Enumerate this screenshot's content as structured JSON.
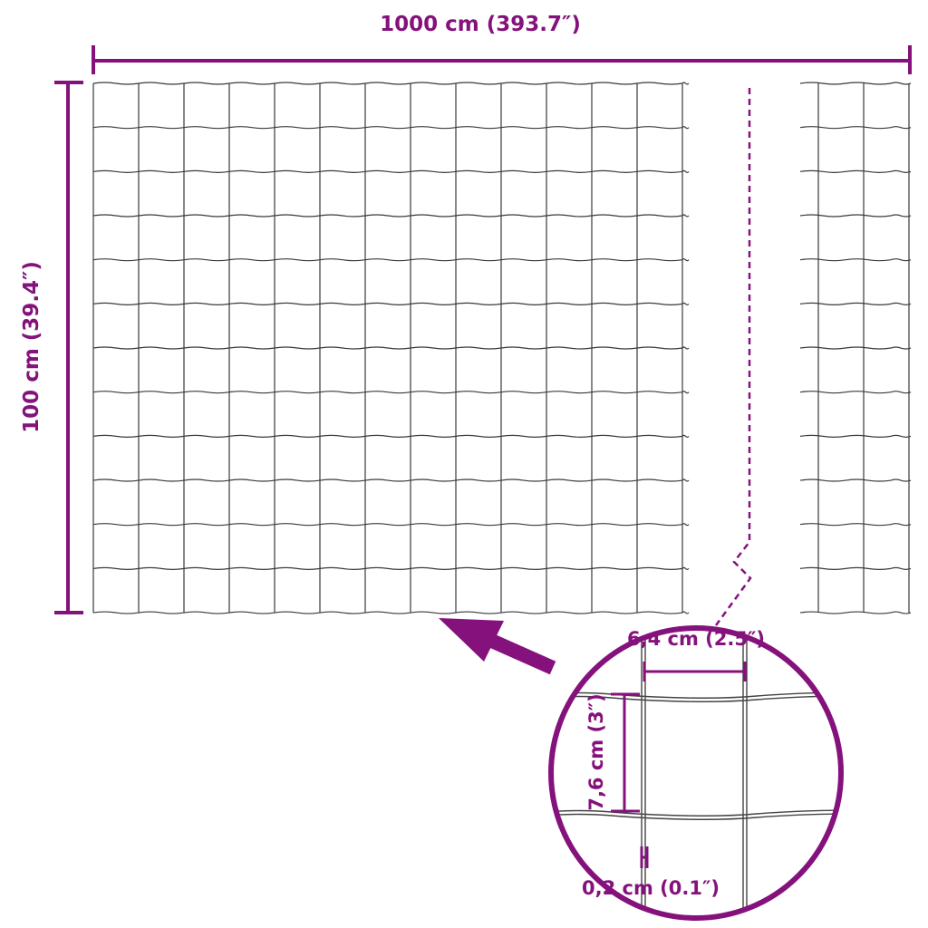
{
  "colors": {
    "accent": "#85127c",
    "wire": "#3a3a3a"
  },
  "dimensions": {
    "length": "1000 cm (393.7″)",
    "height": "100 cm (39.4″)",
    "mesh_width": "6,4 cm (2.5″)",
    "mesh_height": "7,6 cm (3″)",
    "wire_thickness": "0,2 cm (0.1″)"
  }
}
